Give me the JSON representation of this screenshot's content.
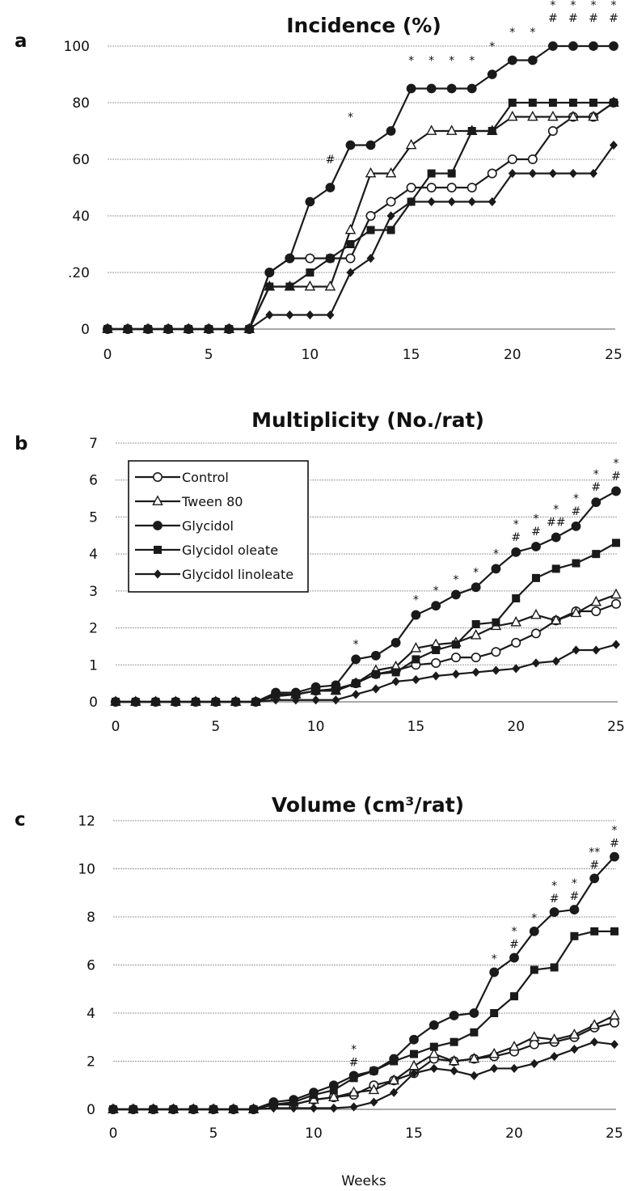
{
  "colors": {
    "line": "#1a1a1a",
    "marker_fill": "#1a1a1a",
    "open_marker_fill": "#ffffff",
    "grid": "#9a9a9a",
    "axis": "#555555"
  },
  "chart_data": [
    {
      "type": "line",
      "panel_label": "a",
      "title": "Incidence (%)",
      "xlabel": "",
      "ylabel": "",
      "xlim": [
        0,
        25
      ],
      "ylim": [
        0,
        100
      ],
      "xticks": [
        "0",
        "5",
        "10",
        "15",
        "20",
        "25"
      ],
      "yticks": [
        "0",
        ".20",
        "40",
        "60",
        "80",
        "100"
      ],
      "grid": true,
      "x": [
        0,
        1,
        2,
        3,
        4,
        5,
        6,
        7,
        8,
        9,
        10,
        11,
        12,
        13,
        14,
        15,
        16,
        17,
        18,
        19,
        20,
        21,
        22,
        23,
        24,
        25
      ],
      "series": [
        {
          "name": "Control",
          "marker": "circle-open",
          "values": [
            0,
            0,
            0,
            0,
            0,
            0,
            0,
            0,
            20,
            25,
            25,
            25,
            25,
            40,
            45,
            50,
            50,
            50,
            50,
            55,
            60,
            60,
            70,
            75,
            75,
            80
          ]
        },
        {
          "name": "Tween 80",
          "marker": "triangle-open",
          "values": [
            0,
            0,
            0,
            0,
            0,
            0,
            0,
            0,
            15,
            15,
            15,
            15,
            35,
            55,
            55,
            65,
            70,
            70,
            70,
            70,
            75,
            75,
            75,
            75,
            75,
            80
          ]
        },
        {
          "name": "Glycidol",
          "marker": "circle-filled",
          "values": [
            0,
            0,
            0,
            0,
            0,
            0,
            0,
            0,
            20,
            25,
            45,
            50,
            65,
            65,
            70,
            85,
            85,
            85,
            85,
            90,
            95,
            95,
            100,
            100,
            100,
            100
          ]
        },
        {
          "name": "Glycidol oleate",
          "marker": "square-filled",
          "values": [
            0,
            0,
            0,
            0,
            0,
            0,
            0,
            0,
            15,
            15,
            20,
            25,
            30,
            35,
            35,
            45,
            55,
            55,
            70,
            70,
            80,
            80,
            80,
            80,
            80,
            80
          ]
        },
        {
          "name": "Glycidol linoleate",
          "marker": "diamond-filled",
          "values": [
            0,
            0,
            0,
            0,
            0,
            0,
            0,
            0,
            5,
            5,
            5,
            5,
            20,
            25,
            40,
            45,
            45,
            45,
            45,
            45,
            55,
            55,
            55,
            55,
            55,
            65
          ]
        }
      ],
      "annotations": [
        {
          "x": 11,
          "lines": [
            "#"
          ]
        },
        {
          "x": 12,
          "lines": [
            "*"
          ]
        },
        {
          "x": 15,
          "lines": [
            "*"
          ]
        },
        {
          "x": 16,
          "lines": [
            "*"
          ]
        },
        {
          "x": 17,
          "lines": [
            "*"
          ]
        },
        {
          "x": 18,
          "lines": [
            "*"
          ]
        },
        {
          "x": 19,
          "lines": [
            "*"
          ]
        },
        {
          "x": 20,
          "lines": [
            "*"
          ]
        },
        {
          "x": 21,
          "lines": [
            "*"
          ]
        },
        {
          "x": 22,
          "lines": [
            "*",
            "#"
          ]
        },
        {
          "x": 23,
          "lines": [
            "*",
            "#"
          ]
        },
        {
          "x": 24,
          "lines": [
            "*",
            "#"
          ]
        },
        {
          "x": 25,
          "lines": [
            "*",
            "#"
          ]
        }
      ]
    },
    {
      "type": "line",
      "panel_label": "b",
      "title": "Multiplicity (No./rat)",
      "xlabel": "",
      "ylabel": "",
      "xlim": [
        0,
        25
      ],
      "ylim": [
        0,
        7
      ],
      "xticks": [
        "0",
        "5",
        "10",
        "15",
        "20",
        "25"
      ],
      "yticks": [
        "0",
        "1",
        "2",
        "3",
        "4",
        "5",
        "6",
        "7"
      ],
      "grid": true,
      "legend": {
        "position": "top-left",
        "entries": [
          "Control",
          "Tween 80",
          "Glycidol",
          "Glycidol oleate",
          "Glycidol linoleate"
        ]
      },
      "x": [
        0,
        1,
        2,
        3,
        4,
        5,
        6,
        7,
        8,
        9,
        10,
        11,
        12,
        13,
        14,
        15,
        16,
        17,
        18,
        19,
        20,
        21,
        22,
        23,
        24,
        25
      ],
      "series": [
        {
          "name": "Control",
          "marker": "circle-open",
          "values": [
            0,
            0,
            0,
            0,
            0,
            0,
            0,
            0,
            0.2,
            0.2,
            0.3,
            0.35,
            0.5,
            0.75,
            0.85,
            1.0,
            1.05,
            1.2,
            1.2,
            1.35,
            1.6,
            1.85,
            2.2,
            2.45,
            2.45,
            2.65
          ]
        },
        {
          "name": "Tween 80",
          "marker": "triangle-open",
          "values": [
            0,
            0,
            0,
            0,
            0,
            0,
            0,
            0,
            0.15,
            0.2,
            0.3,
            0.3,
            0.5,
            0.85,
            0.95,
            1.45,
            1.55,
            1.6,
            1.8,
            2.05,
            2.15,
            2.35,
            2.2,
            2.4,
            2.7,
            2.9
          ]
        },
        {
          "name": "Glycidol",
          "marker": "circle-filled",
          "values": [
            0,
            0,
            0,
            0,
            0,
            0,
            0,
            0,
            0.25,
            0.25,
            0.4,
            0.45,
            1.15,
            1.25,
            1.6,
            2.35,
            2.6,
            2.9,
            3.1,
            3.6,
            4.05,
            4.2,
            4.45,
            4.75,
            5.4,
            5.7
          ]
        },
        {
          "name": "Glycidol oleate",
          "marker": "square-filled",
          "values": [
            0,
            0,
            0,
            0,
            0,
            0,
            0,
            0,
            0.2,
            0.2,
            0.3,
            0.3,
            0.5,
            0.75,
            0.8,
            1.15,
            1.4,
            1.55,
            2.1,
            2.15,
            2.8,
            3.35,
            3.6,
            3.75,
            4.0,
            4.3
          ]
        },
        {
          "name": "Glycidol linoleate",
          "marker": "diamond-filled",
          "values": [
            0,
            0,
            0,
            0,
            0,
            0,
            0,
            0,
            0.05,
            0.05,
            0.05,
            0.05,
            0.2,
            0.35,
            0.55,
            0.6,
            0.7,
            0.75,
            0.8,
            0.85,
            0.9,
            1.05,
            1.1,
            1.4,
            1.4,
            1.55
          ]
        }
      ],
      "annotations": [
        {
          "x": 12,
          "lines": [
            "*"
          ]
        },
        {
          "x": 15,
          "lines": [
            "*"
          ]
        },
        {
          "x": 16,
          "lines": [
            "*"
          ]
        },
        {
          "x": 17,
          "lines": [
            "*"
          ]
        },
        {
          "x": 18,
          "lines": [
            "*"
          ]
        },
        {
          "x": 19,
          "lines": [
            "*"
          ]
        },
        {
          "x": 20,
          "lines": [
            "*",
            "#"
          ]
        },
        {
          "x": 21,
          "lines": [
            "*",
            "#"
          ]
        },
        {
          "x": 22,
          "lines": [
            "*",
            "##"
          ]
        },
        {
          "x": 23,
          "lines": [
            "*",
            "#"
          ]
        },
        {
          "x": 24,
          "lines": [
            "*",
            "#"
          ]
        },
        {
          "x": 25,
          "lines": [
            "*",
            "#"
          ]
        }
      ]
    },
    {
      "type": "line",
      "panel_label": "c",
      "title": "Volume (cm³/rat)",
      "xlabel": "Weeks",
      "ylabel": "",
      "xlim": [
        0,
        25
      ],
      "ylim": [
        0,
        12
      ],
      "xticks": [
        "0",
        "5",
        "10",
        "15",
        "20",
        "25"
      ],
      "yticks": [
        "0",
        "2",
        "4",
        "6",
        "8",
        "10",
        "12"
      ],
      "grid": true,
      "x": [
        0,
        1,
        2,
        3,
        4,
        5,
        6,
        7,
        8,
        9,
        10,
        11,
        12,
        13,
        14,
        15,
        16,
        17,
        18,
        19,
        20,
        21,
        22,
        23,
        24,
        25
      ],
      "series": [
        {
          "name": "Control",
          "marker": "circle-open",
          "values": [
            0,
            0,
            0,
            0,
            0,
            0,
            0,
            0,
            0.2,
            0.2,
            0.4,
            0.5,
            0.6,
            1.0,
            1.2,
            1.5,
            2.1,
            2.0,
            2.1,
            2.2,
            2.4,
            2.7,
            2.8,
            3.0,
            3.4,
            3.6
          ]
        },
        {
          "name": "Tween 80",
          "marker": "triangle-open",
          "values": [
            0,
            0,
            0,
            0,
            0,
            0,
            0,
            0,
            0.2,
            0.2,
            0.4,
            0.5,
            0.7,
            0.8,
            1.2,
            1.8,
            2.3,
            2.0,
            2.1,
            2.3,
            2.6,
            3.0,
            2.9,
            3.1,
            3.5,
            3.9
          ]
        },
        {
          "name": "Glycidol",
          "marker": "circle-filled",
          "values": [
            0,
            0,
            0,
            0,
            0,
            0,
            0,
            0,
            0.3,
            0.4,
            0.7,
            1.0,
            1.4,
            1.6,
            2.1,
            2.9,
            3.5,
            3.9,
            4.0,
            5.7,
            6.3,
            7.4,
            8.2,
            8.3,
            9.6,
            10.5
          ]
        },
        {
          "name": "Glycidol oleate",
          "marker": "square-filled",
          "values": [
            0,
            0,
            0,
            0,
            0,
            0,
            0,
            0,
            0.2,
            0.3,
            0.6,
            0.8,
            1.3,
            1.6,
            2.0,
            2.3,
            2.6,
            2.8,
            3.2,
            4.0,
            4.7,
            5.8,
            5.9,
            7.2,
            7.4,
            7.4
          ]
        },
        {
          "name": "Glycidol linoleate",
          "marker": "diamond-filled",
          "values": [
            0,
            0,
            0,
            0,
            0,
            0,
            0,
            0,
            0.05,
            0.05,
            0.05,
            0.05,
            0.1,
            0.3,
            0.7,
            1.5,
            1.7,
            1.6,
            1.4,
            1.7,
            1.7,
            1.9,
            2.2,
            2.5,
            2.8,
            2.7
          ]
        }
      ],
      "annotations": [
        {
          "x": 12,
          "lines": [
            "*",
            "#"
          ]
        },
        {
          "x": 19,
          "lines": [
            "*"
          ]
        },
        {
          "x": 20,
          "lines": [
            "*",
            "#"
          ]
        },
        {
          "x": 21,
          "lines": [
            "*"
          ]
        },
        {
          "x": 22,
          "lines": [
            "*",
            "#"
          ]
        },
        {
          "x": 23,
          "lines": [
            "*",
            "#"
          ]
        },
        {
          "x": 24,
          "lines": [
            "**",
            "#"
          ]
        },
        {
          "x": 25,
          "lines": [
            "*",
            "#"
          ]
        }
      ]
    }
  ]
}
